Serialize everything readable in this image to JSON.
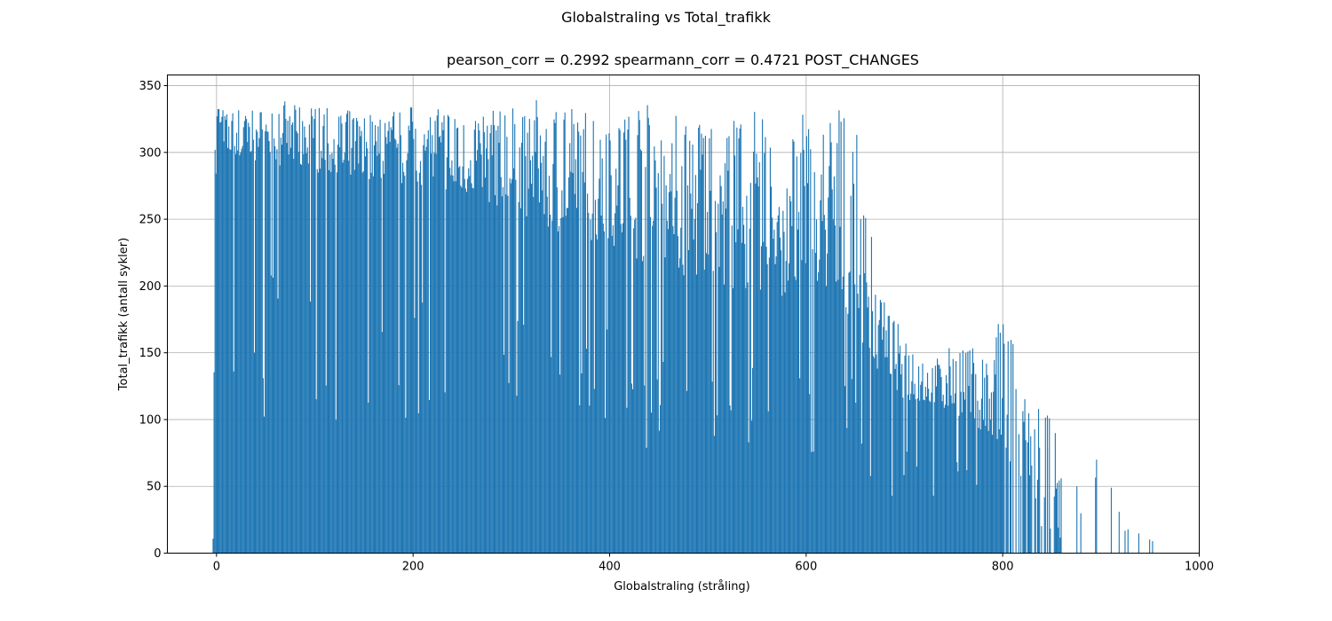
{
  "figure": {
    "suptitle": "Globalstraling vs Total_trafikk",
    "title": "pearson_corr = 0.2992 spearmann_corr = 0.4721 POST_CHANGES"
  },
  "chart_data": {
    "type": "bar",
    "xlabel": "Globalstraling (stråling)",
    "ylabel": "Total_trafikk (antall sykler)",
    "xlim": [
      -50,
      1000
    ],
    "ylim": [
      0,
      358
    ],
    "grid": true,
    "bar_color": "#1f77b4",
    "xticks": [
      0,
      200,
      400,
      600,
      800,
      1000
    ],
    "xtick_labels": [
      "0",
      "200",
      "400",
      "600",
      "800",
      "1000"
    ],
    "yticks": [
      0,
      50,
      100,
      150,
      200,
      250,
      300,
      350
    ],
    "ytick_labels": [
      "0",
      "50",
      "100",
      "150",
      "200",
      "250",
      "300",
      "350"
    ],
    "envelope": {
      "x": [
        -4,
        -2,
        0,
        2,
        5,
        20,
        60,
        100,
        150,
        200,
        250,
        300,
        350,
        400,
        450,
        500,
        550,
        600,
        640,
        650,
        655,
        670,
        700,
        750,
        780,
        800,
        810,
        830,
        850,
        900,
        950
      ],
      "y": [
        15,
        210,
        300,
        320,
        300,
        295,
        290,
        285,
        280,
        275,
        270,
        255,
        240,
        230,
        210,
        200,
        195,
        190,
        180,
        175,
        140,
        130,
        115,
        105,
        90,
        70,
        55,
        40,
        30,
        20,
        10
      ]
    },
    "peaks": {
      "x": [
        -2,
        2,
        10,
        30,
        55,
        70,
        80,
        100,
        150,
        200,
        270,
        330,
        400,
        430,
        460,
        495,
        540,
        575,
        580,
        600,
        610,
        625,
        640,
        650,
        680,
        700,
        725,
        750,
        780,
        800,
        810,
        825,
        835,
        845,
        875,
        895,
        910,
        918,
        952
      ],
      "y": [
        330,
        340,
        330,
        335,
        330,
        340,
        335,
        335,
        330,
        335,
        330,
        340,
        330,
        340,
        330,
        330,
        330,
        340,
        305,
        335,
        310,
        340,
        330,
        318,
        185,
        165,
        140,
        160,
        150,
        180,
        160,
        108,
        115,
        105,
        50,
        70,
        49,
        31,
        9
      ]
    }
  }
}
